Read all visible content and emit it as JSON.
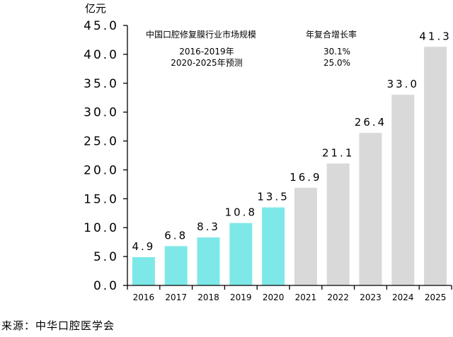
{
  "chart_data": {
    "type": "bar",
    "unit_label": "亿元",
    "categories": [
      "2016",
      "2017",
      "2018",
      "2019",
      "2020",
      "2021",
      "2022",
      "2023",
      "2024",
      "2025"
    ],
    "values": [
      4.9,
      6.8,
      8.3,
      10.8,
      13.5,
      16.9,
      21.1,
      26.4,
      33.0,
      41.3
    ],
    "value_labels": [
      "4.9",
      "6.8",
      "8.3",
      "10.8",
      "13.5",
      "16.9",
      "21.1",
      "26.4",
      "33.0",
      "41.3"
    ],
    "forecast_from_index": 5,
    "colors": {
      "actual": "#7ee8e8",
      "forecast": "#d9d9d9",
      "axis": "#000000"
    },
    "ylim": [
      0,
      45
    ],
    "yticks": [
      0,
      5,
      10,
      15,
      20,
      25,
      30,
      35,
      40,
      45
    ],
    "ytick_labels": [
      "0.0",
      "5.0",
      "10.0",
      "15.0",
      "20.0",
      "25.0",
      "30.0",
      "35.0",
      "40.0",
      "45.0"
    ],
    "grid": false,
    "annotation": {
      "title": "中国口腔修复膜行业市场规模",
      "rate_header": "年复合增长率",
      "rows": [
        {
          "period": "2016-2019年",
          "rate": "30.1%"
        },
        {
          "period": "2020-2025年预测",
          "rate": "25.0%"
        }
      ]
    }
  },
  "source": "来源：中华口腔医学会"
}
